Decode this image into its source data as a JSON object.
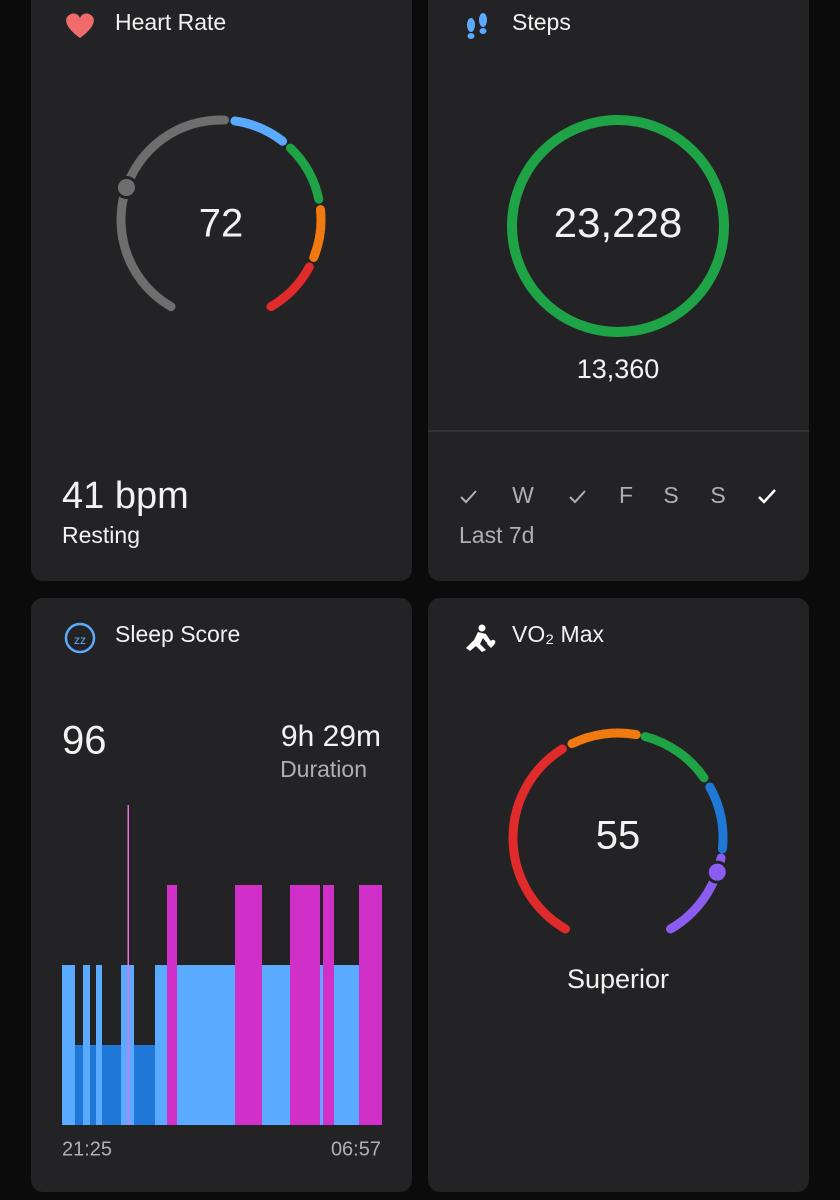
{
  "heart_rate": {
    "title": "Heart Rate",
    "value": 72,
    "resting_value": "41 bpm",
    "resting_label": "Resting"
  },
  "steps": {
    "title": "Steps",
    "value": "23,228",
    "goal": "13,360",
    "days": [
      "W",
      "F",
      "S",
      "S"
    ],
    "period": "Last 7d"
  },
  "sleep": {
    "title": "Sleep Score",
    "score": 96,
    "duration": "9h 29m",
    "duration_label": "Duration",
    "start": "21:25",
    "end": "06:57"
  },
  "vo2_max": {
    "title": "VO₂ Max",
    "value": 55,
    "rating": "Superior"
  }
}
